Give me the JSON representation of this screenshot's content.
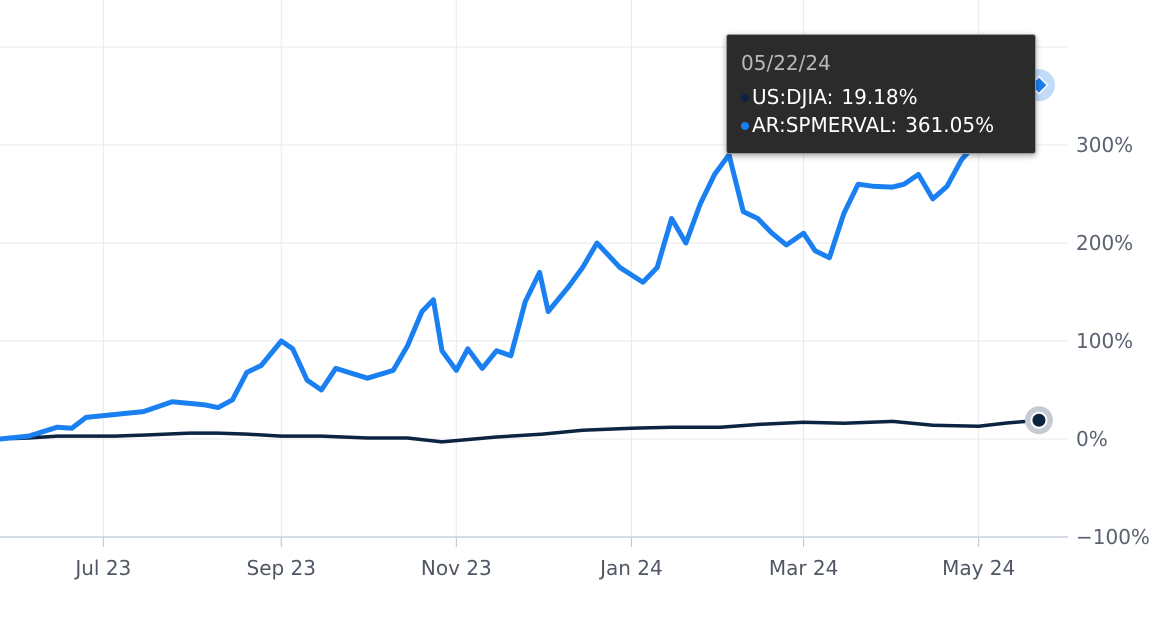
{
  "chart_data": {
    "type": "line",
    "y_unit": "%",
    "ylim": [
      -100,
      400
    ],
    "y_ticks": [
      300,
      200,
      100,
      0,
      -100
    ],
    "y_tick_labels": [
      "300%",
      "200%",
      "100%",
      "0%",
      "−100%"
    ],
    "x_tick_labels": [
      "Jul 23",
      "Sep 23",
      "Nov 23",
      "Jan 24",
      "Mar 24",
      "May 24"
    ],
    "grid": true,
    "series": [
      {
        "name": "US:DJIA",
        "color": "#0d2342",
        "values": [
          [
            "2023-05-26",
            0
          ],
          [
            "2023-06-05",
            1
          ],
          [
            "2023-06-15",
            3
          ],
          [
            "2023-06-25",
            3
          ],
          [
            "2023-07-05",
            3
          ],
          [
            "2023-07-15",
            4
          ],
          [
            "2023-07-31",
            6
          ],
          [
            "2023-08-10",
            6
          ],
          [
            "2023-08-20",
            5
          ],
          [
            "2023-09-01",
            3
          ],
          [
            "2023-09-15",
            3
          ],
          [
            "2023-10-01",
            1
          ],
          [
            "2023-10-15",
            1
          ],
          [
            "2023-10-27",
            -3
          ],
          [
            "2023-11-15",
            2
          ],
          [
            "2023-12-01",
            5
          ],
          [
            "2023-12-15",
            9
          ],
          [
            "2024-01-01",
            11
          ],
          [
            "2024-01-15",
            12
          ],
          [
            "2024-02-01",
            12
          ],
          [
            "2024-02-15",
            15
          ],
          [
            "2024-03-01",
            17
          ],
          [
            "2024-03-15",
            16
          ],
          [
            "2024-04-01",
            18
          ],
          [
            "2024-04-15",
            14
          ],
          [
            "2024-05-01",
            13
          ],
          [
            "2024-05-10",
            16
          ],
          [
            "2024-05-22",
            19.18
          ]
        ]
      },
      {
        "name": "AR:SPMERVAL",
        "color": "#1a7ff0",
        "values": [
          [
            "2023-05-26",
            0
          ],
          [
            "2023-06-05",
            3
          ],
          [
            "2023-06-15",
            12
          ],
          [
            "2023-06-20",
            11
          ],
          [
            "2023-06-25",
            22
          ],
          [
            "2023-07-05",
            25
          ],
          [
            "2023-07-15",
            28
          ],
          [
            "2023-07-25",
            38
          ],
          [
            "2023-08-05",
            35
          ],
          [
            "2023-08-10",
            32
          ],
          [
            "2023-08-15",
            40
          ],
          [
            "2023-08-20",
            68
          ],
          [
            "2023-08-25",
            75
          ],
          [
            "2023-09-01",
            100
          ],
          [
            "2023-09-05",
            92
          ],
          [
            "2023-09-10",
            60
          ],
          [
            "2023-09-15",
            50
          ],
          [
            "2023-09-20",
            72
          ],
          [
            "2023-10-01",
            62
          ],
          [
            "2023-10-10",
            70
          ],
          [
            "2023-10-15",
            95
          ],
          [
            "2023-10-20",
            130
          ],
          [
            "2023-10-24",
            142
          ],
          [
            "2023-10-27",
            90
          ],
          [
            "2023-11-01",
            70
          ],
          [
            "2023-11-05",
            92
          ],
          [
            "2023-11-10",
            72
          ],
          [
            "2023-11-15",
            90
          ],
          [
            "2023-11-20",
            85
          ],
          [
            "2023-11-25",
            140
          ],
          [
            "2023-11-30",
            170
          ],
          [
            "2023-12-03",
            130
          ],
          [
            "2023-12-10",
            155
          ],
          [
            "2023-12-15",
            175
          ],
          [
            "2023-12-20",
            200
          ],
          [
            "2023-12-28",
            175
          ],
          [
            "2024-01-05",
            160
          ],
          [
            "2024-01-10",
            175
          ],
          [
            "2024-01-15",
            225
          ],
          [
            "2024-01-20",
            200
          ],
          [
            "2024-01-25",
            240
          ],
          [
            "2024-01-30",
            270
          ],
          [
            "2024-02-04",
            290
          ],
          [
            "2024-02-09",
            232
          ],
          [
            "2024-02-14",
            225
          ],
          [
            "2024-02-19",
            210
          ],
          [
            "2024-02-24",
            198
          ],
          [
            "2024-03-01",
            210
          ],
          [
            "2024-03-05",
            192
          ],
          [
            "2024-03-10",
            185
          ],
          [
            "2024-03-15",
            230
          ],
          [
            "2024-03-20",
            260
          ],
          [
            "2024-03-25",
            258
          ],
          [
            "2024-04-01",
            257
          ],
          [
            "2024-04-05",
            260
          ],
          [
            "2024-04-10",
            270
          ],
          [
            "2024-04-15",
            245
          ],
          [
            "2024-04-20",
            258
          ],
          [
            "2024-04-25",
            285
          ],
          [
            "2024-05-01",
            305
          ],
          [
            "2024-05-10",
            305
          ],
          [
            "2024-05-15",
            335
          ],
          [
            "2024-05-22",
            361.05
          ]
        ]
      }
    ]
  },
  "tooltip": {
    "date": "05/22/24",
    "rows": [
      {
        "label": "US:DJIA:",
        "value": "19.18%",
        "color": "#0d2342"
      },
      {
        "label": "AR:SPMERVAL:",
        "value": "361.05%",
        "color": "#1a7ff0"
      }
    ]
  }
}
